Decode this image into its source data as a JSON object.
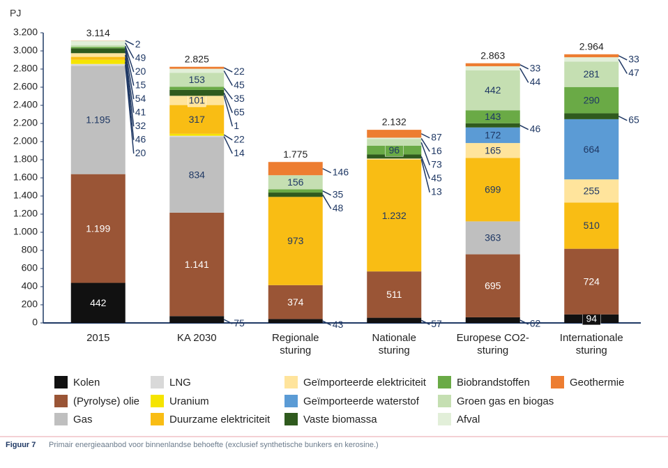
{
  "chart_data": {
    "type": "bar",
    "stacked": true,
    "ylabel": "PJ",
    "categories": [
      "2015",
      "KA 2030",
      "Regionale sturing",
      "Nationale sturing",
      "Europese CO2-sturing",
      "Internationale sturing"
    ],
    "series": [
      {
        "name": "Kolen",
        "color": "#111111",
        "values": [
          442,
          75,
          43,
          57,
          62,
          94
        ]
      },
      {
        "name": "(Pyrolyse) olie",
        "color": "#9a5536",
        "values": [
          1199,
          1141,
          374,
          511,
          695,
          724
        ],
        "value_labels": [
          "1.199",
          "1.141",
          "374",
          "511",
          "695",
          "724"
        ]
      },
      {
        "name": "Gas",
        "color": "#bfbfbf",
        "values": [
          1195,
          834,
          0,
          0,
          363,
          0
        ],
        "value_labels": [
          "1.195",
          "834",
          null,
          null,
          "363",
          null
        ]
      },
      {
        "name": "LNG",
        "color": "#d9d9d9",
        "values": [
          20,
          14,
          0,
          0,
          0,
          0
        ]
      },
      {
        "name": "Uranium",
        "color": "#f5e400",
        "values": [
          46,
          22,
          0,
          0,
          0,
          0
        ]
      },
      {
        "name": "Duurzame elektriciteit",
        "color": "#f9bd14",
        "values": [
          32,
          317,
          973,
          1232,
          699,
          510
        ],
        "value_labels": [
          "32",
          "317",
          "973",
          "1.232",
          "699",
          "510"
        ]
      },
      {
        "name": "Geïmporteerde elektriciteit",
        "color": "#ffe49c",
        "values": [
          41,
          101,
          0,
          13,
          165,
          255
        ]
      },
      {
        "name": "Geïmporteerde waterstof",
        "color": "#5b9bd5",
        "values": [
          0,
          1,
          0,
          0,
          172,
          664
        ]
      },
      {
        "name": "Vaste biomassa",
        "color": "#2f5a1e",
        "values": [
          54,
          65,
          48,
          45,
          46,
          65
        ]
      },
      {
        "name": "Biobrandstoffen",
        "color": "#6aaa46",
        "values": [
          15,
          35,
          35,
          96,
          143,
          290
        ]
      },
      {
        "name": "Groen gas en biogas",
        "color": "#c5dfb2",
        "values": [
          20,
          153,
          156,
          73,
          442,
          281
        ]
      },
      {
        "name": "Afval",
        "color": "#e2efd9",
        "values": [
          49,
          45,
          0,
          16,
          44,
          47
        ]
      },
      {
        "name": "Geothermie",
        "color": "#ed7d31",
        "values": [
          2,
          22,
          146,
          87,
          33,
          33
        ]
      }
    ],
    "totals": {
      "values": [
        3114,
        2825,
        1775,
        2132,
        2863,
        2964
      ],
      "value_labels": [
        "3.114",
        "2.825",
        "1.775",
        "2.132",
        "2.863",
        "2.964"
      ]
    },
    "ylim": [
      0,
      3200
    ],
    "yticks": [
      0,
      200,
      400,
      600,
      800,
      {
        "value": 1000,
        "label": "1.000"
      },
      {
        "value": 1200,
        "label": "1.200"
      },
      {
        "value": 1400,
        "label": "1.400"
      },
      {
        "value": 1600,
        "label": "1.600"
      },
      {
        "value": 1800,
        "label": "1.800"
      },
      {
        "value": 2000,
        "label": "2.000"
      },
      {
        "value": 2200,
        "label": "2.200"
      },
      {
        "value": 2400,
        "label": "2.400"
      },
      {
        "value": 2600,
        "label": "2.600"
      },
      {
        "value": 2800,
        "label": "2.800"
      },
      {
        "value": 3000,
        "label": "3.000"
      },
      {
        "value": 3200,
        "label": "3.200"
      }
    ]
  },
  "caption": {
    "figure": "Figuur 7",
    "text": "Primair energieaanbod voor binnenlandse behoefte (exclusief synthetische bunkers en kerosine.)"
  }
}
